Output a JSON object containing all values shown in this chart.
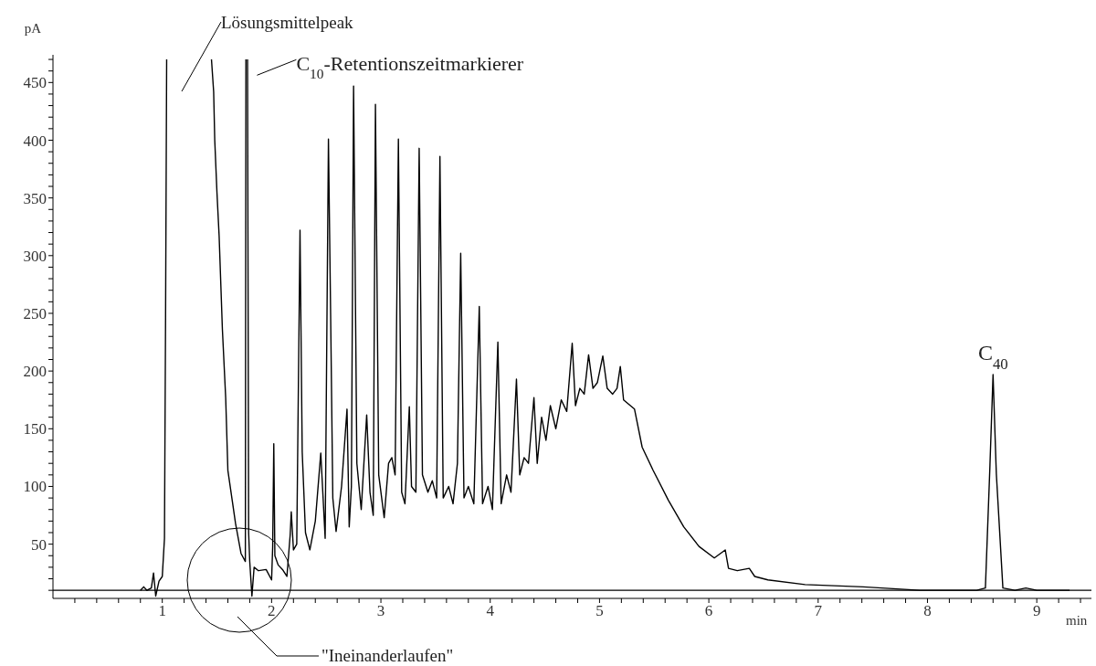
{
  "chart_data": {
    "type": "line",
    "xlabel": "min",
    "ylabel": "pA",
    "xlim": [
      0,
      9.5
    ],
    "ylim": [
      3,
      474
    ],
    "xticks": [
      {
        "value": 0.2,
        "label": null
      },
      {
        "value": 0.4,
        "label": null
      },
      {
        "value": 0.6,
        "label": null
      },
      {
        "value": 0.8,
        "label": null
      },
      1,
      {
        "value": 1.2,
        "label": null
      },
      {
        "value": 1.4,
        "label": null
      },
      {
        "value": 1.6,
        "label": null
      },
      {
        "value": 1.8,
        "label": null
      },
      2,
      {
        "value": 2.2,
        "label": null
      },
      {
        "value": 2.4,
        "label": null
      },
      {
        "value": 2.6,
        "label": null
      },
      {
        "value": 2.8,
        "label": null
      },
      3,
      {
        "value": 3.2,
        "label": null
      },
      {
        "value": 3.4,
        "label": null
      },
      {
        "value": 3.6,
        "label": null
      },
      {
        "value": 3.8,
        "label": null
      },
      4,
      {
        "value": 4.2,
        "label": null
      },
      {
        "value": 4.4,
        "label": null
      },
      {
        "value": 4.6,
        "label": null
      },
      {
        "value": 4.8,
        "label": null
      },
      5,
      {
        "value": 5.2,
        "label": null
      },
      {
        "value": 5.4,
        "label": null
      },
      {
        "value": 5.6,
        "label": null
      },
      {
        "value": 5.8,
        "label": null
      },
      6,
      {
        "value": 6.2,
        "label": null
      },
      {
        "value": 6.4,
        "label": null
      },
      {
        "value": 6.6,
        "label": null
      },
      {
        "value": 6.8,
        "label": null
      },
      7,
      {
        "value": 7.2,
        "label": null
      },
      {
        "value": 7.4,
        "label": null
      },
      {
        "value": 7.6,
        "label": null
      },
      {
        "value": 7.8,
        "label": null
      },
      8,
      {
        "value": 8.2,
        "label": null
      },
      {
        "value": 8.4,
        "label": null
      },
      {
        "value": 8.6,
        "label": null
      },
      {
        "value": 8.8,
        "label": null
      },
      9,
      {
        "value": 9.2,
        "label": null
      },
      {
        "value": 9.4,
        "label": null
      }
    ],
    "yticks": [
      {
        "value": 10,
        "label": null
      },
      {
        "value": 20,
        "label": null
      },
      {
        "value": 30,
        "label": null
      },
      {
        "value": 40,
        "label": null
      },
      50,
      {
        "value": 60,
        "label": null
      },
      {
        "value": 70,
        "label": null
      },
      {
        "value": 80,
        "label": null
      },
      {
        "value": 90,
        "label": null
      },
      100,
      {
        "value": 110,
        "label": null
      },
      {
        "value": 120,
        "label": null
      },
      {
        "value": 130,
        "label": null
      },
      {
        "value": 140,
        "label": null
      },
      150,
      {
        "value": 160,
        "label": null
      },
      {
        "value": 170,
        "label": null
      },
      {
        "value": 180,
        "label": null
      },
      {
        "value": 190,
        "label": null
      },
      200,
      {
        "value": 210,
        "label": null
      },
      {
        "value": 220,
        "label": null
      },
      {
        "value": 230,
        "label": null
      },
      {
        "value": 240,
        "label": null
      },
      250,
      {
        "value": 260,
        "label": null
      },
      {
        "value": 270,
        "label": null
      },
      {
        "value": 280,
        "label": null
      },
      {
        "value": 290,
        "label": null
      },
      300,
      {
        "value": 310,
        "label": null
      },
      {
        "value": 320,
        "label": null
      },
      {
        "value": 330,
        "label": null
      },
      {
        "value": 340,
        "label": null
      },
      350,
      {
        "value": 360,
        "label": null
      },
      {
        "value": 370,
        "label": null
      },
      {
        "value": 380,
        "label": null
      },
      {
        "value": 390,
        "label": null
      },
      400,
      {
        "value": 410,
        "label": null
      },
      {
        "value": 420,
        "label": null
      },
      {
        "value": 430,
        "label": null
      },
      {
        "value": 440,
        "label": null
      },
      450,
      {
        "value": 460,
        "label": null
      },
      {
        "value": 470,
        "label": null
      }
    ],
    "ref_lines": [
      {
        "axis": "y",
        "value": 10,
        "color": "#000000"
      }
    ],
    "annotations": [
      "Lösungsmittelpeak",
      {
        "text": "C$_{10}$-Retentionszeitmarkierer",
        "x": 1.8,
        "y": 450
      },
      {
        "text": "C$_{40}$",
        "x": 8.6,
        "y": 200
      },
      "\"Ineinanderlaufen\""
    ],
    "series": [
      {
        "color": "#000000",
        "x": [
          0.8,
          0.83,
          0.86,
          0.9,
          0.92,
          0.94,
          0.97,
          1.0,
          1.02,
          1.03,
          1.04,
          1.2,
          1.45,
          1.47,
          1.48,
          1.5,
          1.52,
          1.55,
          1.58,
          1.6,
          1.67,
          1.72,
          1.76,
          1.765,
          1.77,
          1.78,
          1.79,
          1.8,
          1.82,
          1.84,
          1.88,
          1.95,
          2.0,
          2.01,
          2.02,
          2.03,
          2.06,
          2.1,
          2.14,
          2.17,
          2.18,
          2.2,
          2.23,
          2.26,
          2.28,
          2.31,
          2.35,
          2.4,
          2.45,
          2.49,
          2.52,
          2.54,
          2.56,
          2.59,
          2.64,
          2.69,
          2.71,
          2.73,
          2.75,
          2.78,
          2.82,
          2.87,
          2.9,
          2.93,
          2.95,
          2.98,
          3.03,
          3.07,
          3.1,
          3.13,
          3.16,
          3.19,
          3.22,
          3.26,
          3.28,
          3.32,
          3.35,
          3.38,
          3.43,
          3.47,
          3.51,
          3.54,
          3.57,
          3.62,
          3.66,
          3.7,
          3.73,
          3.76,
          3.8,
          3.85,
          3.9,
          3.93,
          3.98,
          4.02,
          4.07,
          4.1,
          4.15,
          4.19,
          4.24,
          4.27,
          4.31,
          4.35,
          4.4,
          4.43,
          4.47,
          4.51,
          4.55,
          4.6,
          4.65,
          4.7,
          4.75,
          4.78,
          4.82,
          4.86,
          4.9,
          4.94,
          4.98,
          5.03,
          5.07,
          5.12,
          5.16,
          5.19,
          5.22,
          5.32,
          5.39,
          5.49,
          5.63,
          5.77,
          5.91,
          6.05,
          6.15,
          6.18,
          6.26,
          6.37,
          6.42,
          6.54,
          6.88,
          7.41,
          7.93,
          8.45,
          8.53,
          8.57,
          8.6,
          8.63,
          8.69,
          8.8,
          8.9,
          9.0,
          9.3
        ],
        "values": [
          10,
          13,
          10,
          12,
          25,
          5,
          18,
          22,
          55,
          245,
          470,
          null,
          470,
          442,
          400,
          355,
          317,
          236,
          177,
          114,
          68,
          42,
          35,
          470,
          null,
          470,
          60,
          35,
          5,
          30,
          27,
          28,
          19,
          48,
          137,
          40,
          32,
          28,
          22,
          58,
          78,
          45,
          50,
          322,
          130,
          60,
          45,
          70,
          129,
          55,
          401,
          250,
          90,
          61,
          100,
          167,
          65,
          100,
          447,
          120,
          80,
          162,
          95,
          75,
          431,
          110,
          73,
          120,
          125,
          110,
          401,
          95,
          85,
          169,
          100,
          95,
          393,
          110,
          95,
          105,
          90,
          386,
          90,
          100,
          85,
          120,
          302,
          90,
          100,
          85,
          256,
          85,
          100,
          80,
          225,
          85,
          110,
          95,
          193,
          110,
          125,
          120,
          177,
          120,
          160,
          140,
          170,
          150,
          175,
          165,
          224,
          170,
          185,
          180,
          214,
          185,
          190,
          213,
          185,
          180,
          185,
          204,
          175,
          167,
          134,
          114,
          88,
          65,
          48,
          38,
          45,
          29,
          27,
          29,
          22,
          19,
          15,
          13,
          10,
          10,
          12,
          114,
          197,
          111,
          12,
          10,
          12,
          10,
          10
        ]
      }
    ]
  }
}
